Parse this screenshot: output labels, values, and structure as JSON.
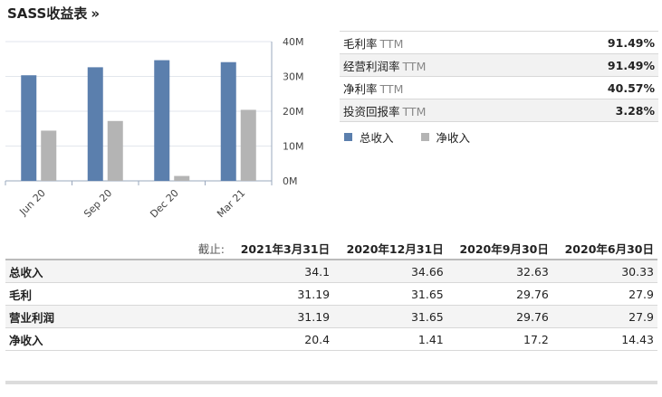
{
  "title": "SASS收益表",
  "title_arrow": "»",
  "chart_data": {
    "type": "bar",
    "categories": [
      "Jun 20",
      "Sep 20",
      "Dec 20",
      "Mar 21"
    ],
    "series": [
      {
        "name": "总收入",
        "color": "#5b7fad",
        "values": [
          30.33,
          32.63,
          34.66,
          34.1
        ]
      },
      {
        "name": "净收入",
        "color": "#b4b4b4",
        "values": [
          14.43,
          17.2,
          1.41,
          20.4
        ]
      }
    ],
    "ylim": [
      0,
      40
    ],
    "yticks": [
      "0M",
      "10M",
      "20M",
      "30M",
      "40M"
    ],
    "ytick_values": [
      0,
      10,
      20,
      30,
      40
    ],
    "y_axis_side": "right",
    "legend_position": "right"
  },
  "metrics": [
    {
      "label": "毛利率",
      "suffix": "TTM",
      "value": "91.49%"
    },
    {
      "label": "经营利润率",
      "suffix": "TTM",
      "value": "91.49%"
    },
    {
      "label": "净利率",
      "suffix": "TTM",
      "value": "40.57%"
    },
    {
      "label": "投资回报率",
      "suffix": "TTM",
      "value": "3.28%"
    }
  ],
  "legend": {
    "revenue": "总收入",
    "net": "净收入"
  },
  "table": {
    "cutoff_label": "截止:",
    "columns": [
      "2021年3月31日",
      "2020年12月31日",
      "2020年9月30日",
      "2020年6月30日"
    ],
    "rows": [
      {
        "label": "总收入",
        "values": [
          "34.1",
          "34.66",
          "32.63",
          "30.33"
        ]
      },
      {
        "label": "毛利",
        "values": [
          "31.19",
          "31.65",
          "29.76",
          "27.9"
        ]
      },
      {
        "label": "营业利润",
        "values": [
          "31.19",
          "31.65",
          "29.76",
          "27.9"
        ]
      },
      {
        "label": "净收入",
        "values": [
          "20.4",
          "1.41",
          "17.2",
          "14.43"
        ]
      }
    ]
  }
}
